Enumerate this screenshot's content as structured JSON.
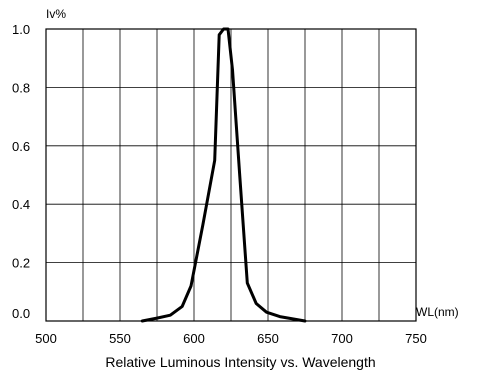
{
  "chart_data": {
    "type": "line",
    "title": "Relative Luminous Intensity vs. Wavelength",
    "xlabel": "WL(nm)",
    "ylabel": "Iv%",
    "xlim": [
      500,
      750
    ],
    "ylim": [
      0,
      1.0
    ],
    "x_ticks": [
      500,
      550,
      600,
      650,
      700,
      750
    ],
    "y_ticks": [
      "0.0",
      "0.2",
      "0.4",
      "0.6",
      "0.8",
      "1.0"
    ],
    "grid": true,
    "line_color": "#000000",
    "series": [
      {
        "x": [
          565,
          575,
          584,
          592,
          598,
          606,
          614,
          617,
          620,
          623,
          626,
          631,
          636,
          642,
          649,
          658,
          675
        ],
        "y": [
          0.0,
          0.01,
          0.02,
          0.05,
          0.12,
          0.33,
          0.55,
          0.98,
          1.0,
          1.0,
          0.86,
          0.49,
          0.13,
          0.06,
          0.03,
          0.015,
          0.0
        ]
      }
    ]
  }
}
